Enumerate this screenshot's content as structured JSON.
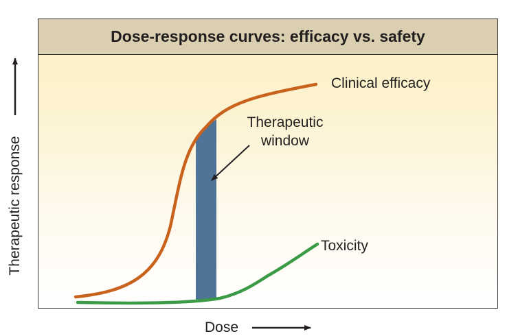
{
  "title": "Dose-response curves: efficacy vs. safety",
  "axes": {
    "x_label": "Dose",
    "y_label": "Therapeutic response"
  },
  "curves": {
    "efficacy_label": "Clinical efficacy",
    "toxicity_label": "Toxicity",
    "efficacy_color": "#c8621d",
    "toxicity_color": "#3a9a45"
  },
  "window": {
    "label_line1": "Therapeutic",
    "label_line2": "window",
    "color": "#4f7497"
  },
  "colors": {
    "title_bar": "#dacfb1",
    "plot_top": "#fbefc0"
  }
}
